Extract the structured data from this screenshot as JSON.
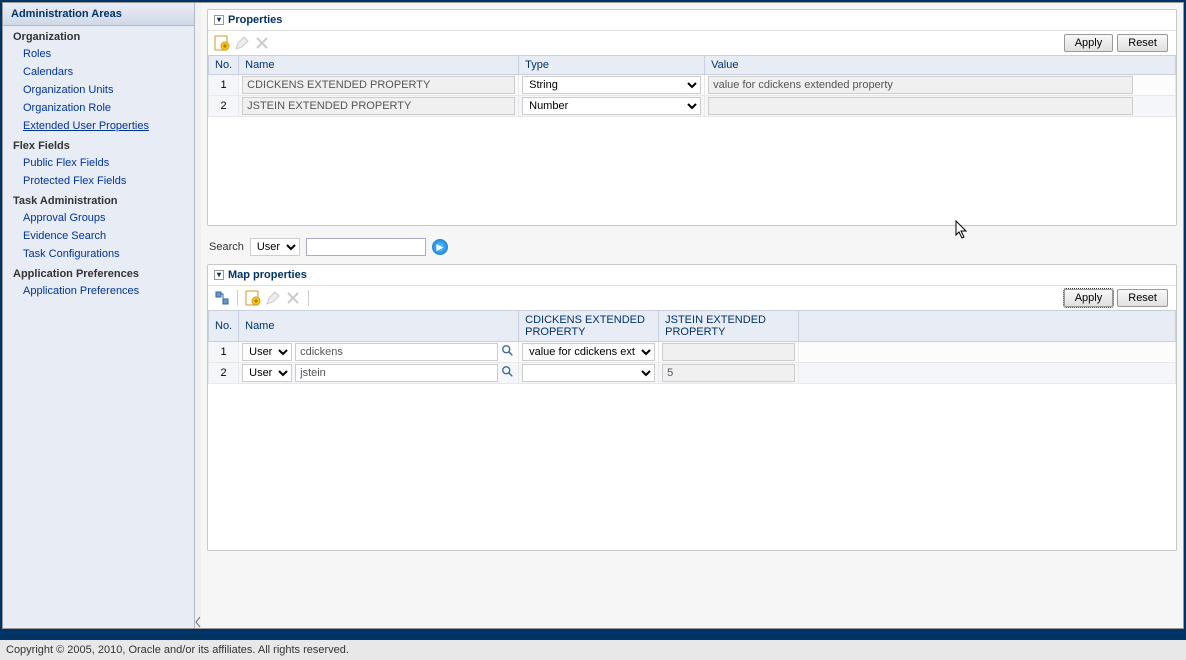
{
  "sidebar": {
    "title": "Administration Areas",
    "sections": [
      {
        "title": "Organization",
        "items": [
          "Roles",
          "Calendars",
          "Organization Units",
          "Organization Role",
          "Extended User Properties"
        ],
        "selectedIndex": 4
      },
      {
        "title": "Flex Fields",
        "items": [
          "Public Flex Fields",
          "Protected Flex Fields"
        ],
        "selectedIndex": -1
      },
      {
        "title": "Task Administration",
        "items": [
          "Approval Groups",
          "Evidence Search",
          "Task Configurations"
        ],
        "selectedIndex": -1
      },
      {
        "title": "Application Preferences",
        "items": [
          "Application Preferences"
        ],
        "selectedIndex": -1
      }
    ]
  },
  "propertiesPanel": {
    "title": "Properties",
    "buttons": {
      "apply": "Apply",
      "reset": "Reset"
    },
    "columns": [
      "No.",
      "Name",
      "Type",
      "Value"
    ],
    "rows": [
      {
        "no": "1",
        "name": "CDICKENS EXTENDED PROPERTY",
        "type": "String",
        "value": "value for cdickens extended property"
      },
      {
        "no": "2",
        "name": "JSTEIN EXTENDED PROPERTY",
        "type": "Number",
        "value": ""
      }
    ]
  },
  "search": {
    "label": "Search",
    "selectValue": "User",
    "inputValue": ""
  },
  "mapPanel": {
    "title": "Map properties",
    "buttons": {
      "apply": "Apply",
      "reset": "Reset"
    },
    "columns": [
      "No.",
      "Name",
      "CDICKENS EXTENDED PROPERTY",
      "JSTEIN EXTENDED PROPERTY"
    ],
    "rows": [
      {
        "no": "1",
        "nameType": "User",
        "name": "cdickens",
        "val1": "value for cdickens ext",
        "val2": ""
      },
      {
        "no": "2",
        "nameType": "User",
        "name": "jstein",
        "val1": "",
        "val2": "5"
      }
    ]
  },
  "footer": "Copyright © 2005, 2010, Oracle and/or its affiliates. All rights reserved."
}
